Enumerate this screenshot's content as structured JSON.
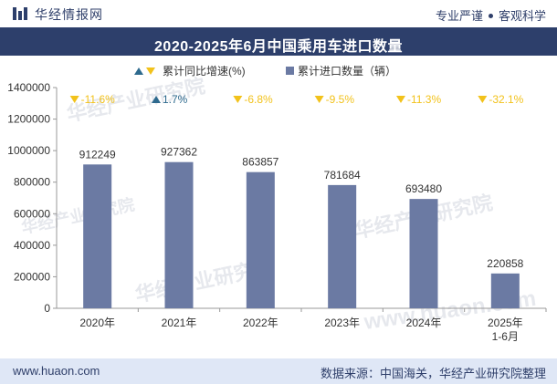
{
  "header": {
    "site_name": "华经情报网",
    "slogan_left": "专业严谨",
    "slogan_right": "客观科学"
  },
  "footer": {
    "url": "www.huaon.com",
    "source": "数据来源：中国海关，华经产业研究院整理"
  },
  "watermarks": [
    "华经产业研究院",
    "华经产业研究院",
    "华经产业研究院",
    "华经产业研究院",
    "www.huaon.com"
  ],
  "colors": {
    "bar": "#6b7aa3",
    "down_marker": "#f2c21b",
    "up_marker": "#2e6a8e",
    "title_bg": "#2d3f6b",
    "footer_bg": "#dfe7f6"
  },
  "chart_data": {
    "type": "bar",
    "title": "2020-2025年6月中国乘用车进口数量",
    "categories": [
      "2020年",
      "2021年",
      "2022年",
      "2023年",
      "2024年",
      "2025年\n1-6月"
    ],
    "series": [
      {
        "name": "累计进口数量（辆）",
        "values": [
          912249,
          927362,
          863857,
          781684,
          693480,
          220858
        ]
      }
    ],
    "growth": {
      "name": "累计同比增速(%)",
      "values": [
        -11.6,
        1.7,
        -6.8,
        -9.5,
        -11.3,
        -32.1
      ],
      "labels": [
        "-11.6%",
        "1.7%",
        "-6.8%",
        "-9.5%",
        "-11.3%",
        "-32.1%"
      ]
    },
    "value_labels": [
      "912249",
      "927362",
      "863857",
      "781684",
      "693480",
      "220858"
    ],
    "ylim": [
      0,
      1400000
    ],
    "yticks": [
      0,
      200000,
      400000,
      600000,
      800000,
      1000000,
      1200000,
      1400000
    ],
    "legend": {
      "growth_label": "累计同比增速(%)",
      "bar_label": "累计进口数量（辆）",
      "position": "top-center"
    },
    "xlabel": "",
    "ylabel": ""
  }
}
